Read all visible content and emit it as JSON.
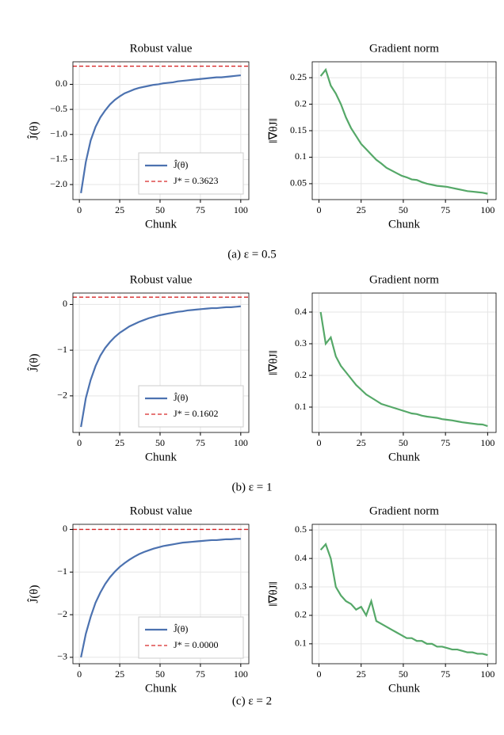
{
  "chart_data": [
    {
      "type": "line",
      "title": "Robust value",
      "xlabel": "Chunk",
      "ylabel": "Ĵ(θ)",
      "x": [
        1,
        4,
        7,
        10,
        13,
        16,
        19,
        22,
        25,
        28,
        31,
        34,
        37,
        40,
        43,
        46,
        49,
        52,
        55,
        58,
        61,
        64,
        67,
        70,
        73,
        76,
        79,
        82,
        85,
        88,
        91,
        94,
        97,
        100
      ],
      "series": [
        {
          "name": "Ĵ(θ)",
          "color": "#4c72b0",
          "values": [
            -2.17,
            -1.55,
            -1.12,
            -0.85,
            -0.66,
            -0.52,
            -0.4,
            -0.31,
            -0.24,
            -0.18,
            -0.14,
            -0.1,
            -0.07,
            -0.05,
            -0.03,
            -0.01,
            0.0,
            0.02,
            0.03,
            0.04,
            0.06,
            0.07,
            0.08,
            0.09,
            0.1,
            0.11,
            0.12,
            0.13,
            0.14,
            0.14,
            0.15,
            0.16,
            0.17,
            0.18
          ]
        }
      ],
      "hline": {
        "name": "J* = 0.3623",
        "value": 0.3623,
        "color": "#d62728"
      },
      "xlim": [
        -4,
        105
      ],
      "ylim": [
        -2.3,
        0.45
      ],
      "xticks": [
        0,
        25,
        50,
        75,
        100
      ],
      "yticks": [
        {
          "value": -2.0,
          "label": "−2.0"
        },
        {
          "value": -1.5,
          "label": "−1.5"
        },
        {
          "value": -1.0,
          "label": "−1.0"
        },
        {
          "value": -0.5,
          "label": "−0.5"
        },
        {
          "value": 0.0,
          "label": "0.0"
        }
      ],
      "grid": true,
      "legend": "lower right"
    },
    {
      "type": "line",
      "title": "Gradient norm",
      "xlabel": "Chunk",
      "ylabel": "‖∇θJ‖",
      "x": [
        1,
        4,
        7,
        10,
        13,
        16,
        19,
        22,
        25,
        28,
        31,
        34,
        37,
        40,
        43,
        46,
        49,
        52,
        55,
        58,
        61,
        64,
        67,
        70,
        73,
        76,
        79,
        82,
        85,
        88,
        91,
        94,
        97,
        100
      ],
      "series": [
        {
          "color": "#55a868",
          "values": [
            0.253,
            0.265,
            0.235,
            0.22,
            0.2,
            0.175,
            0.155,
            0.14,
            0.125,
            0.115,
            0.105,
            0.095,
            0.088,
            0.08,
            0.075,
            0.07,
            0.065,
            0.062,
            0.058,
            0.057,
            0.053,
            0.05,
            0.048,
            0.046,
            0.045,
            0.044,
            0.042,
            0.04,
            0.038,
            0.036,
            0.035,
            0.034,
            0.033,
            0.031
          ]
        }
      ],
      "xlim": [
        -4,
        105
      ],
      "ylim": [
        0.02,
        0.28
      ],
      "xticks": [
        0,
        25,
        50,
        75,
        100
      ],
      "yticks": [
        0.05,
        0.1,
        0.15,
        0.2,
        0.25
      ],
      "grid": true
    },
    {
      "type": "line",
      "title": "Robust value",
      "xlabel": "Chunk",
      "ylabel": "Ĵ(θ)",
      "x": [
        1,
        4,
        7,
        10,
        13,
        16,
        19,
        22,
        25,
        28,
        31,
        34,
        37,
        40,
        43,
        46,
        49,
        52,
        55,
        58,
        61,
        64,
        67,
        70,
        73,
        76,
        79,
        82,
        85,
        88,
        91,
        94,
        97,
        100
      ],
      "series": [
        {
          "name": "Ĵ(θ)",
          "color": "#4c72b0",
          "values": [
            -2.68,
            -2.05,
            -1.65,
            -1.35,
            -1.12,
            -0.95,
            -0.82,
            -0.71,
            -0.62,
            -0.55,
            -0.48,
            -0.43,
            -0.38,
            -0.34,
            -0.3,
            -0.27,
            -0.24,
            -0.22,
            -0.2,
            -0.18,
            -0.16,
            -0.15,
            -0.13,
            -0.12,
            -0.11,
            -0.1,
            -0.09,
            -0.08,
            -0.08,
            -0.07,
            -0.06,
            -0.06,
            -0.05,
            -0.04
          ]
        }
      ],
      "hline": {
        "name": "J* = 0.1602",
        "value": 0.1602,
        "color": "#d62728"
      },
      "xlim": [
        -4,
        105
      ],
      "ylim": [
        -2.8,
        0.25
      ],
      "xticks": [
        0,
        25,
        50,
        75,
        100
      ],
      "yticks": [
        {
          "value": -2,
          "label": "−2"
        },
        {
          "value": -1,
          "label": "−1"
        },
        0
      ],
      "grid": true,
      "legend": "lower right"
    },
    {
      "type": "line",
      "title": "Gradient norm",
      "xlabel": "Chunk",
      "ylabel": "‖∇θJ‖",
      "x": [
        1,
        4,
        7,
        10,
        13,
        16,
        19,
        22,
        25,
        28,
        31,
        34,
        37,
        40,
        43,
        46,
        49,
        52,
        55,
        58,
        61,
        64,
        67,
        70,
        73,
        76,
        79,
        82,
        85,
        88,
        91,
        94,
        97,
        100
      ],
      "series": [
        {
          "color": "#55a868",
          "values": [
            0.4,
            0.3,
            0.32,
            0.26,
            0.23,
            0.21,
            0.19,
            0.17,
            0.155,
            0.14,
            0.13,
            0.12,
            0.11,
            0.105,
            0.1,
            0.095,
            0.09,
            0.085,
            0.08,
            0.078,
            0.073,
            0.07,
            0.068,
            0.066,
            0.062,
            0.06,
            0.058,
            0.055,
            0.052,
            0.05,
            0.048,
            0.046,
            0.045,
            0.04
          ]
        }
      ],
      "xlim": [
        -4,
        105
      ],
      "ylim": [
        0.02,
        0.46
      ],
      "xticks": [
        0,
        25,
        50,
        75,
        100
      ],
      "yticks": [
        0.1,
        0.2,
        0.3,
        0.4
      ],
      "grid": true
    },
    {
      "type": "line",
      "title": "Robust value",
      "xlabel": "Chunk",
      "ylabel": "Ĵ(θ)",
      "x": [
        1,
        4,
        7,
        10,
        13,
        16,
        19,
        22,
        25,
        28,
        31,
        34,
        37,
        40,
        43,
        46,
        49,
        52,
        55,
        58,
        61,
        64,
        67,
        70,
        73,
        76,
        79,
        82,
        85,
        88,
        91,
        94,
        97,
        100
      ],
      "series": [
        {
          "name": "Ĵ(θ)",
          "color": "#4c72b0",
          "values": [
            -3.0,
            -2.45,
            -2.05,
            -1.72,
            -1.48,
            -1.28,
            -1.12,
            -0.99,
            -0.88,
            -0.79,
            -0.71,
            -0.64,
            -0.58,
            -0.53,
            -0.49,
            -0.45,
            -0.42,
            -0.39,
            -0.37,
            -0.35,
            -0.33,
            -0.31,
            -0.3,
            -0.29,
            -0.28,
            -0.27,
            -0.26,
            -0.25,
            -0.25,
            -0.24,
            -0.23,
            -0.23,
            -0.22,
            -0.22
          ]
        }
      ],
      "hline": {
        "name": "J* = 0.0000",
        "value": 0,
        "color": "#d62728"
      },
      "xlim": [
        -4,
        105
      ],
      "ylim": [
        -3.15,
        0.12
      ],
      "xticks": [
        0,
        25,
        50,
        75,
        100
      ],
      "yticks": [
        {
          "value": -3,
          "label": "−3"
        },
        {
          "value": -2,
          "label": "−2"
        },
        {
          "value": -1,
          "label": "−1"
        },
        0
      ],
      "grid": true,
      "legend": "lower right"
    },
    {
      "type": "line",
      "title": "Gradient norm",
      "xlabel": "Chunk",
      "ylabel": "‖∇θJ‖",
      "x": [
        1,
        4,
        7,
        10,
        13,
        16,
        19,
        22,
        25,
        28,
        31,
        34,
        37,
        40,
        43,
        46,
        49,
        52,
        55,
        58,
        61,
        64,
        67,
        70,
        73,
        76,
        79,
        82,
        85,
        88,
        91,
        94,
        97,
        100
      ],
      "series": [
        {
          "color": "#55a868",
          "values": [
            0.43,
            0.45,
            0.4,
            0.3,
            0.27,
            0.25,
            0.24,
            0.22,
            0.23,
            0.2,
            0.25,
            0.18,
            0.17,
            0.16,
            0.15,
            0.14,
            0.13,
            0.12,
            0.12,
            0.11,
            0.11,
            0.1,
            0.1,
            0.09,
            0.09,
            0.085,
            0.08,
            0.08,
            0.075,
            0.07,
            0.07,
            0.065,
            0.065,
            0.06
          ]
        }
      ],
      "xlim": [
        -4,
        105
      ],
      "ylim": [
        0.03,
        0.52
      ],
      "xticks": [
        0,
        25,
        50,
        75,
        100
      ],
      "yticks": [
        0.1,
        0.2,
        0.3,
        0.4,
        0.5
      ],
      "grid": true
    }
  ],
  "captions": [
    "(a) ε = 0.5",
    "(b) ε = 1",
    "(c) ε = 2"
  ]
}
